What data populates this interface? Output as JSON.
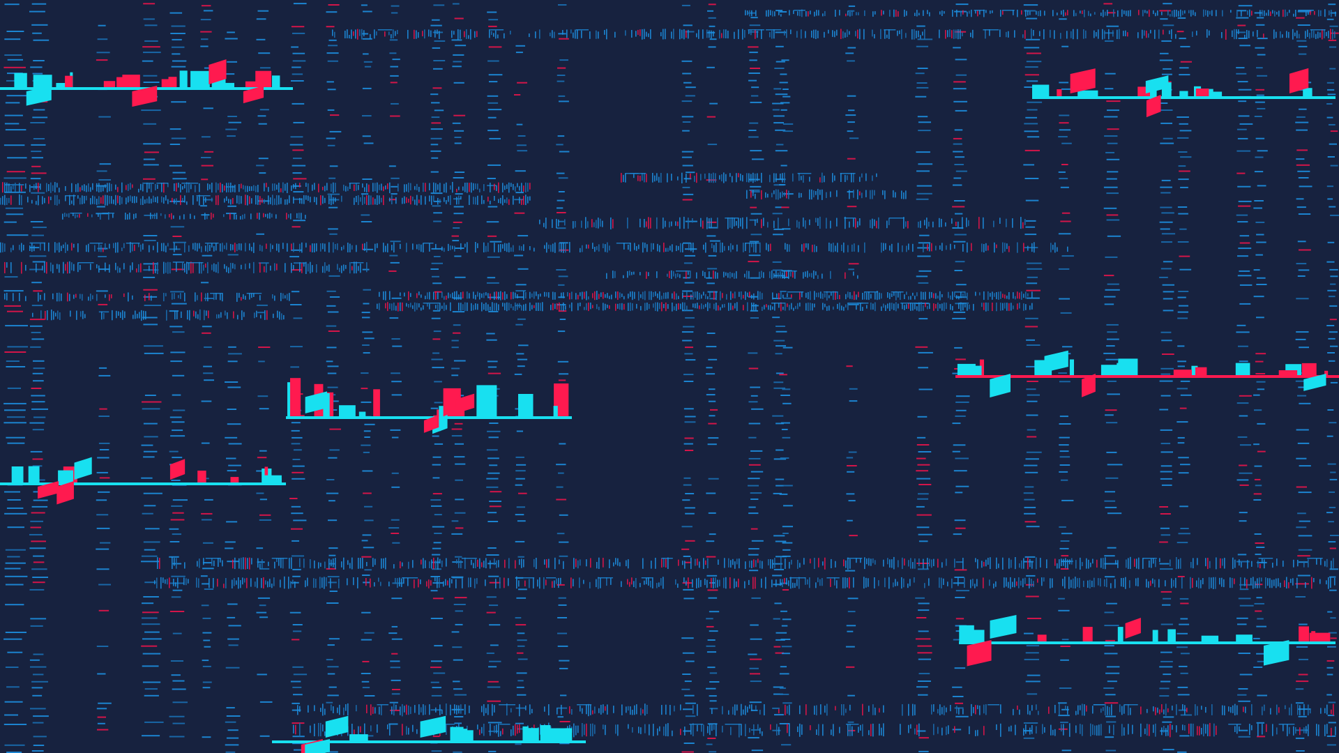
{
  "scene": {
    "description_kind": "abstract data-visualization glitch pattern",
    "colors": {
      "background": "#17223f",
      "dash_blue": "#1d8fe0",
      "dash_blue_dim": "#1a6fb3",
      "dash_red": "#e8144a",
      "accent_cyan": "#18e0f0",
      "accent_red": "#ff1a4f"
    }
  }
}
